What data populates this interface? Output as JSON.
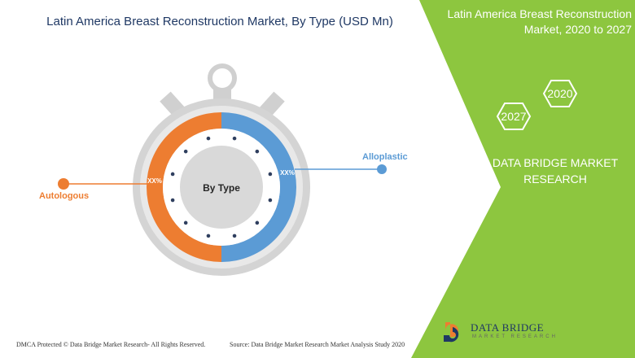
{
  "chart_data": {
    "type": "pie",
    "title": "Latin America Breast Reconstruction Market, By Type (USD Mn)",
    "center_label": "By Type",
    "categories": [
      "Alloplastic",
      "Autologous"
    ],
    "values": [
      50,
      50
    ],
    "data_labels": [
      "XX%",
      "XX%"
    ],
    "colors": [
      "#5b9bd5",
      "#ed7d31"
    ]
  },
  "side_panel": {
    "title": "Latin America Breast Reconstruction Market, 2020 to 2027",
    "years": [
      "2020",
      "2027"
    ],
    "brand_text": "DATA BRIDGE MARKET RESEARCH",
    "accent_color": "#8dc63f"
  },
  "footer": {
    "dmca": "DMCA Protected © Data Bridge Market Research- All Rights Reserved.",
    "source": "Source: Data Bridge Market Research Market Analysis Study 2020"
  },
  "logo": {
    "name": "DATA BRIDGE",
    "tagline": "MARKET RESEARCH"
  }
}
